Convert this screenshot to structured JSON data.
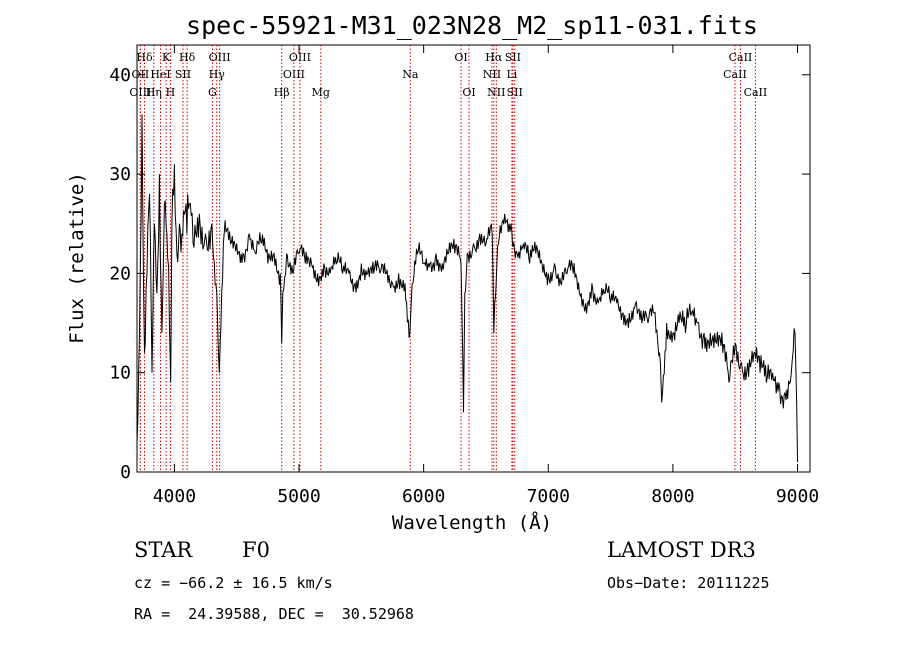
{
  "chart_data": {
    "type": "line",
    "title": "spec-55921-M31_023N28_M2_sp11-031.fits",
    "xlabel": "Wavelength (Å)",
    "ylabel": "Flux (relative)",
    "xlim": [
      3700,
      9100
    ],
    "ylim": [
      0,
      43
    ],
    "xticks": [
      4000,
      5000,
      6000,
      7000,
      8000,
      9000
    ],
    "yticks": [
      0,
      10,
      20,
      30,
      40
    ],
    "grid": false,
    "series": [
      {
        "name": "flux",
        "x": [
          3700,
          3720,
          3740,
          3760,
          3780,
          3800,
          3820,
          3840,
          3860,
          3880,
          3900,
          3920,
          3940,
          3960,
          3970,
          3980,
          4000,
          4020,
          4040,
          4060,
          4080,
          4100,
          4120,
          4150,
          4200,
          4250,
          4300,
          4340,
          4360,
          4400,
          4450,
          4500,
          4550,
          4600,
          4650,
          4700,
          4750,
          4800,
          4850,
          4861,
          4870,
          4900,
          4950,
          5000,
          5050,
          5100,
          5150,
          5200,
          5250,
          5300,
          5350,
          5400,
          5450,
          5500,
          5550,
          5600,
          5650,
          5700,
          5750,
          5800,
          5850,
          5890,
          5900,
          5950,
          6000,
          6050,
          6100,
          6150,
          6200,
          6250,
          6300,
          6320,
          6330,
          6350,
          6400,
          6450,
          6500,
          6550,
          6563,
          6600,
          6650,
          6700,
          6750,
          6800,
          6850,
          6900,
          6950,
          7000,
          7050,
          7100,
          7150,
          7200,
          7250,
          7300,
          7350,
          7400,
          7450,
          7500,
          7550,
          7600,
          7650,
          7700,
          7750,
          7800,
          7850,
          7900,
          7910,
          7950,
          8000,
          8050,
          8100,
          8150,
          8200,
          8250,
          8300,
          8350,
          8400,
          8450,
          8500,
          8550,
          8600,
          8650,
          8700,
          8750,
          8800,
          8850,
          8900,
          8950,
          8980,
          9000
        ],
        "values": [
          3,
          14,
          36,
          12,
          20,
          28,
          10,
          25,
          18,
          30,
          14,
          27,
          24,
          15,
          9,
          25,
          31,
          22,
          25,
          24,
          26,
          24,
          27,
          23,
          26,
          24,
          25,
          18,
          10,
          24,
          23,
          23,
          22,
          24,
          22,
          23,
          21,
          22,
          20,
          13,
          18,
          22,
          20,
          22,
          21,
          21,
          20,
          21,
          20,
          21,
          20,
          20,
          19,
          21,
          20,
          20,
          20,
          20,
          19,
          20,
          19,
          14,
          17,
          22,
          21,
          21,
          22,
          21,
          22,
          22,
          21,
          6,
          18,
          22,
          23,
          24,
          23,
          24,
          14,
          23,
          26,
          25,
          22,
          23,
          21,
          22,
          21,
          20,
          21,
          19,
          20,
          20,
          18,
          17,
          19,
          17,
          18,
          17,
          17,
          16,
          16,
          17,
          15,
          15,
          16,
          11,
          7,
          15,
          14,
          15,
          14,
          16,
          15,
          14,
          14,
          13,
          12,
          9,
          13,
          11,
          11,
          12,
          10,
          9,
          10,
          9,
          8,
          10,
          14,
          1
        ]
      }
    ],
    "line_labels": [
      {
        "text": "Hδ",
        "wl": 3760,
        "row": 0
      },
      {
        "text": "OII",
        "wl": 3727,
        "row": 1
      },
      {
        "text": "OIII",
        "wl": 3727,
        "row": 2
      },
      {
        "text": "K",
        "wl": 3934,
        "row": 0
      },
      {
        "text": "HeI",
        "wl": 3889,
        "row": 1
      },
      {
        "text": "Hη",
        "wl": 3835,
        "row": 2
      },
      {
        "text": "Hδ",
        "wl": 4102,
        "row": 0
      },
      {
        "text": "SII",
        "wl": 4069,
        "row": 1
      },
      {
        "text": "H",
        "wl": 3968,
        "row": 2
      },
      {
        "text": "OIII",
        "wl": 4363,
        "row": 0
      },
      {
        "text": "Hγ",
        "wl": 4340,
        "row": 1
      },
      {
        "text": "G",
        "wl": 4305,
        "row": 2
      },
      {
        "text": "OIII",
        "wl": 5007,
        "row": 0
      },
      {
        "text": "OIII",
        "wl": 4959,
        "row": 1
      },
      {
        "text": "Hβ",
        "wl": 4861,
        "row": 2
      },
      {
        "text": "Mg",
        "wl": 5175,
        "row": 2
      },
      {
        "text": "Na",
        "wl": 5893,
        "row": 1
      },
      {
        "text": "OI",
        "wl": 6300,
        "row": 0
      },
      {
        "text": "OI",
        "wl": 6364,
        "row": 2
      },
      {
        "text": "Hα",
        "wl": 6563,
        "row": 0
      },
      {
        "text": "SII",
        "wl": 6716,
        "row": 0
      },
      {
        "text": "NII",
        "wl": 6548,
        "row": 1
      },
      {
        "text": "Li",
        "wl": 6708,
        "row": 1
      },
      {
        "text": "NII",
        "wl": 6583,
        "row": 2
      },
      {
        "text": "SII",
        "wl": 6731,
        "row": 2
      },
      {
        "text": "CaII",
        "wl": 8542,
        "row": 0
      },
      {
        "text": "CaII",
        "wl": 8498,
        "row": 1
      },
      {
        "text": "CaII",
        "wl": 8662,
        "row": 2
      }
    ]
  },
  "info": {
    "object_class": "STAR",
    "subclass": "F0",
    "survey": "LAMOST DR3",
    "cz": "cz = −66.2 ± 16.5 km/s",
    "obs_date": "Obs−Date: 20111225",
    "radec": "RA =  24.39588, DEC =  30.52968"
  }
}
